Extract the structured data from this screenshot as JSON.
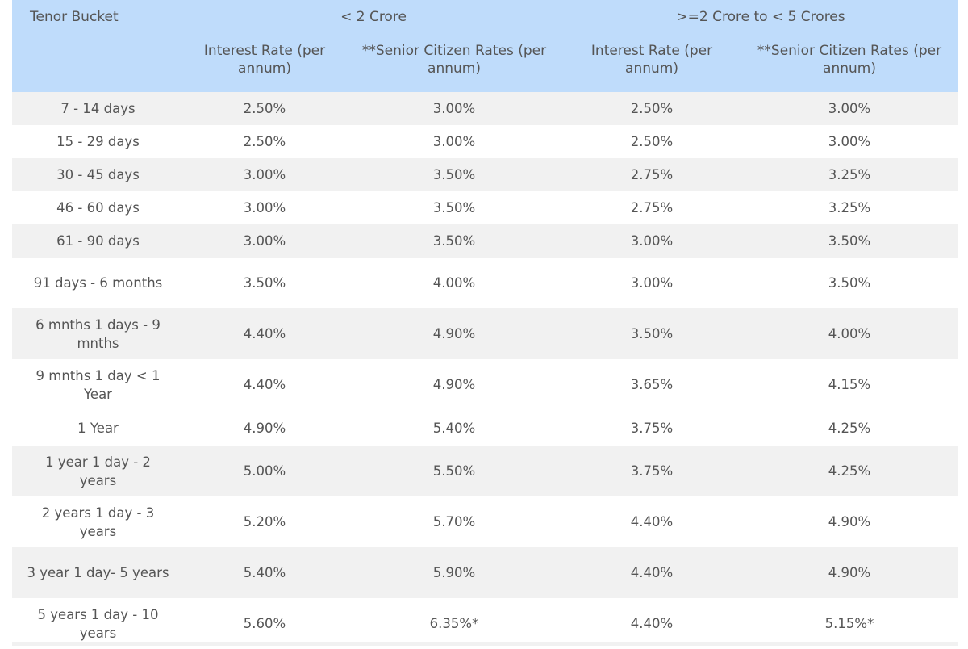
{
  "table": {
    "header": {
      "tenor_label": "Tenor Bucket",
      "groups": [
        {
          "label": "< 2 Crore"
        },
        {
          "label": ">=2 Crore to < 5 Crores"
        }
      ],
      "subcolumns": [
        "Interest Rate (per annum)",
        "**Senior Citizen Rates (per annum)",
        "Interest Rate (per annum)",
        "**Senior Citizen Rates (per annum)"
      ]
    },
    "rows": [
      {
        "tenor": "7 - 14 days",
        "lt2_rate": "2.50%",
        "lt2_senior": "3.00%",
        "gte2_rate": "2.50%",
        "gte2_senior": "3.00%"
      },
      {
        "tenor": "15 - 29 days",
        "lt2_rate": "2.50%",
        "lt2_senior": "3.00%",
        "gte2_rate": "2.50%",
        "gte2_senior": "3.00%"
      },
      {
        "tenor": "30 - 45 days",
        "lt2_rate": "3.00%",
        "lt2_senior": "3.50%",
        "gte2_rate": "2.75%",
        "gte2_senior": "3.25%"
      },
      {
        "tenor": "46 - 60 days",
        "lt2_rate": "3.00%",
        "lt2_senior": "3.50%",
        "gte2_rate": "2.75%",
        "gte2_senior": "3.25%"
      },
      {
        "tenor": "61 - 90 days",
        "lt2_rate": "3.00%",
        "lt2_senior": "3.50%",
        "gte2_rate": "3.00%",
        "gte2_senior": "3.50%"
      },
      {
        "tenor": "91 days - 6 months",
        "lt2_rate": "3.50%",
        "lt2_senior": "4.00%",
        "gte2_rate": "3.00%",
        "gte2_senior": "3.50%"
      },
      {
        "tenor": "6 mnths 1 days - 9 mnths",
        "lt2_rate": "4.40%",
        "lt2_senior": "4.90%",
        "gte2_rate": "3.50%",
        "gte2_senior": "4.00%"
      },
      {
        "tenor": "9 mnths 1 day < 1 Year",
        "lt2_rate": "4.40%",
        "lt2_senior": "4.90%",
        "gte2_rate": "3.65%",
        "gte2_senior": "4.15%"
      },
      {
        "tenor": "1 Year",
        "lt2_rate": "4.90%",
        "lt2_senior": "5.40%",
        "gte2_rate": "3.75%",
        "gte2_senior": "4.25%"
      },
      {
        "tenor": "1 year 1 day - 2 years",
        "lt2_rate": "5.00%",
        "lt2_senior": "5.50%",
        "gte2_rate": "3.75%",
        "gte2_senior": "4.25%"
      },
      {
        "tenor": "2 years 1 day - 3 years",
        "lt2_rate": "5.20%",
        "lt2_senior": "5.70%",
        "gte2_rate": "4.40%",
        "gte2_senior": "4.90%"
      },
      {
        "tenor": "3 year 1 day- 5 years",
        "lt2_rate": "5.40%",
        "lt2_senior": "5.90%",
        "gte2_rate": "4.40%",
        "gte2_senior": "4.90%"
      },
      {
        "tenor": "5 years 1 day - 10 years",
        "lt2_rate": "5.60%",
        "lt2_senior": "6.35%*",
        "gte2_rate": "4.40%",
        "gte2_senior": "5.15%*"
      }
    ]
  },
  "colors": {
    "header_bg": "#bfdcfb",
    "row_gray": "#f1f1f1",
    "row_white": "#ffffff",
    "text": "#555555"
  }
}
